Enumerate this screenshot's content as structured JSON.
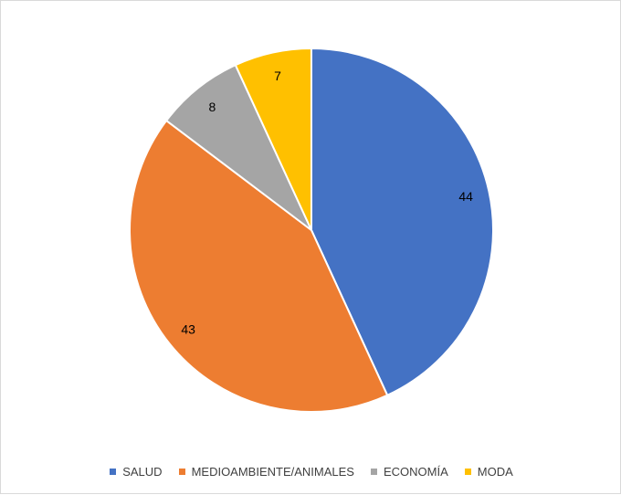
{
  "chart_data": {
    "type": "pie",
    "categories": [
      "SALUD",
      "MEDIOAMBIENTE/ANIMALES",
      "ECONOMÍA",
      "MODA"
    ],
    "values": [
      44,
      43,
      8,
      7
    ],
    "colors": [
      "#4472C4",
      "#ED7D31",
      "#A5A5A5",
      "#FFC000"
    ],
    "data_labels": [
      "44",
      "43",
      "8",
      "7"
    ],
    "start_angle": "12 o'clock",
    "direction": "clockwise",
    "legend_position": "bottom"
  }
}
